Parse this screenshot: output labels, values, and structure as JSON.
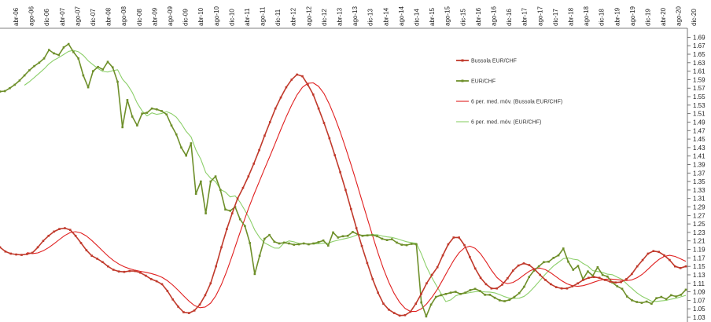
{
  "chart_data": {
    "type": "line",
    "x_labels": [
      "abr-06",
      "ago-06",
      "dic-06",
      "abr-07",
      "ago-07",
      "dic-07",
      "abr-08",
      "ago-08",
      "dic-08",
      "abr-09",
      "ago-09",
      "dic-09",
      "abr-10",
      "ago-10",
      "dic-10",
      "abr-11",
      "ago-11",
      "dic-11",
      "abr-12",
      "ago-12",
      "dic-12",
      "abr-13",
      "ago-13",
      "dic-13",
      "abr-14",
      "ago-14",
      "dic-14",
      "abr-15",
      "ago-15",
      "dic-15",
      "abr-16",
      "ago-16",
      "dic-16",
      "abr-17",
      "ago-17",
      "dic-17",
      "abr-18",
      "ago-18",
      "dic-18",
      "abr-19",
      "ago-19",
      "dic-19",
      "abr-20",
      "ago-20",
      "dic-20"
    ],
    "y_ticks": [
      "1.03",
      "1.05",
      "1.07",
      "1.09",
      "1.11",
      "1.13",
      "1.15",
      "1.17",
      "1.19",
      "1.21",
      "1.23",
      "1.25",
      "1.27",
      "1.29",
      "1.31",
      "1.33",
      "1.35",
      "1.37",
      "1.39",
      "1.41",
      "1.43",
      "1.45",
      "1.47",
      "1.49",
      "1.51",
      "1.53",
      "1.55",
      "1.57",
      "1.59",
      "1.61",
      "1.63",
      "1.65",
      "1.67",
      "1.69"
    ],
    "ylim": [
      1.03,
      1.7
    ],
    "legend_position": "top-right",
    "grid": false,
    "series": [
      {
        "name": "Bussola EUR/CHF",
        "color": "#c0392b",
        "marker": "square",
        "values": [
          1.195,
          1.185,
          1.18,
          1.178,
          1.177,
          1.179,
          1.182,
          1.195,
          1.21,
          1.222,
          1.232,
          1.238,
          1.24,
          1.236,
          1.222,
          1.205,
          1.188,
          1.175,
          1.168,
          1.16,
          1.15,
          1.142,
          1.138,
          1.137,
          1.139,
          1.139,
          1.135,
          1.128,
          1.12,
          1.115,
          1.108,
          1.092,
          1.072,
          1.055,
          1.042,
          1.04,
          1.046,
          1.06,
          1.082,
          1.11,
          1.15,
          1.195,
          1.238,
          1.275,
          1.31,
          1.335,
          1.362,
          1.392,
          1.424,
          1.458,
          1.49,
          1.522,
          1.548,
          1.572,
          1.59,
          1.602,
          1.598,
          1.578,
          1.555,
          1.522,
          1.488,
          1.452,
          1.412,
          1.372,
          1.33,
          1.285,
          1.24,
          1.198,
          1.158,
          1.12,
          1.088,
          1.062,
          1.048,
          1.04,
          1.034,
          1.035,
          1.043,
          1.062,
          1.085,
          1.11,
          1.13,
          1.148,
          1.176,
          1.202,
          1.218,
          1.218,
          1.2,
          1.172,
          1.145,
          1.123,
          1.108,
          1.098,
          1.098,
          1.107,
          1.122,
          1.14,
          1.152,
          1.157,
          1.153,
          1.143,
          1.13,
          1.118,
          1.108,
          1.101,
          1.098,
          1.098,
          1.103,
          1.11,
          1.118,
          1.123,
          1.125,
          1.123,
          1.118,
          1.114,
          1.112,
          1.113,
          1.12,
          1.132,
          1.15,
          1.165,
          1.18,
          1.186,
          1.184,
          1.176,
          1.165,
          1.15,
          1.146,
          1.15
        ]
      },
      {
        "name": "EUR/CHF",
        "color": "#6e8f2a",
        "marker": "square",
        "values": [
          1.562,
          1.563,
          1.57,
          1.578,
          1.588,
          1.6,
          1.612,
          1.622,
          1.63,
          1.64,
          1.66,
          1.652,
          1.648,
          1.666,
          1.674,
          1.655,
          1.64,
          1.6,
          1.572,
          1.61,
          1.62,
          1.614,
          1.632,
          1.619,
          1.585,
          1.478,
          1.542,
          1.503,
          1.482,
          1.51,
          1.512,
          1.522,
          1.52,
          1.516,
          1.508,
          1.482,
          1.461,
          1.43,
          1.411,
          1.44,
          1.321,
          1.35,
          1.275,
          1.35,
          1.362,
          1.33,
          1.284,
          1.281,
          1.29,
          1.261,
          1.245,
          1.205,
          1.132,
          1.175,
          1.215,
          1.224,
          1.208,
          1.204,
          1.206,
          1.204,
          1.201,
          1.202,
          1.204,
          1.202,
          1.204,
          1.207,
          1.211,
          1.199,
          1.23,
          1.218,
          1.221,
          1.222,
          1.231,
          1.226,
          1.222,
          1.223,
          1.224,
          1.221,
          1.215,
          1.212,
          1.214,
          1.206,
          1.201,
          1.2,
          1.203,
          1.202,
          1.065,
          1.032,
          1.06,
          1.078,
          1.082,
          1.085,
          1.088,
          1.09,
          1.085,
          1.088,
          1.094,
          1.097,
          1.092,
          1.083,
          1.083,
          1.076,
          1.07,
          1.068,
          1.071,
          1.078,
          1.087,
          1.102,
          1.125,
          1.14,
          1.15,
          1.16,
          1.161,
          1.17,
          1.176,
          1.192,
          1.161,
          1.142,
          1.151,
          1.12,
          1.138,
          1.128,
          1.148,
          1.13,
          1.126,
          1.112,
          1.103,
          1.097,
          1.079,
          1.07,
          1.066,
          1.064,
          1.067,
          1.062,
          1.075,
          1.078,
          1.073,
          1.082,
          1.079,
          1.083,
          1.095
        ]
      },
      {
        "name": "6 per. med. móv. (Bussola EUR/CHF)",
        "color": "#e02020",
        "marker": "none",
        "moving_average_of": "Bussola EUR/CHF",
        "period": 6
      },
      {
        "name": "6 per. med. móv. (EUR/CHF)",
        "color": "#8ccf6a",
        "marker": "none",
        "moving_average_of": "EUR/CHF",
        "period": 6
      }
    ]
  }
}
